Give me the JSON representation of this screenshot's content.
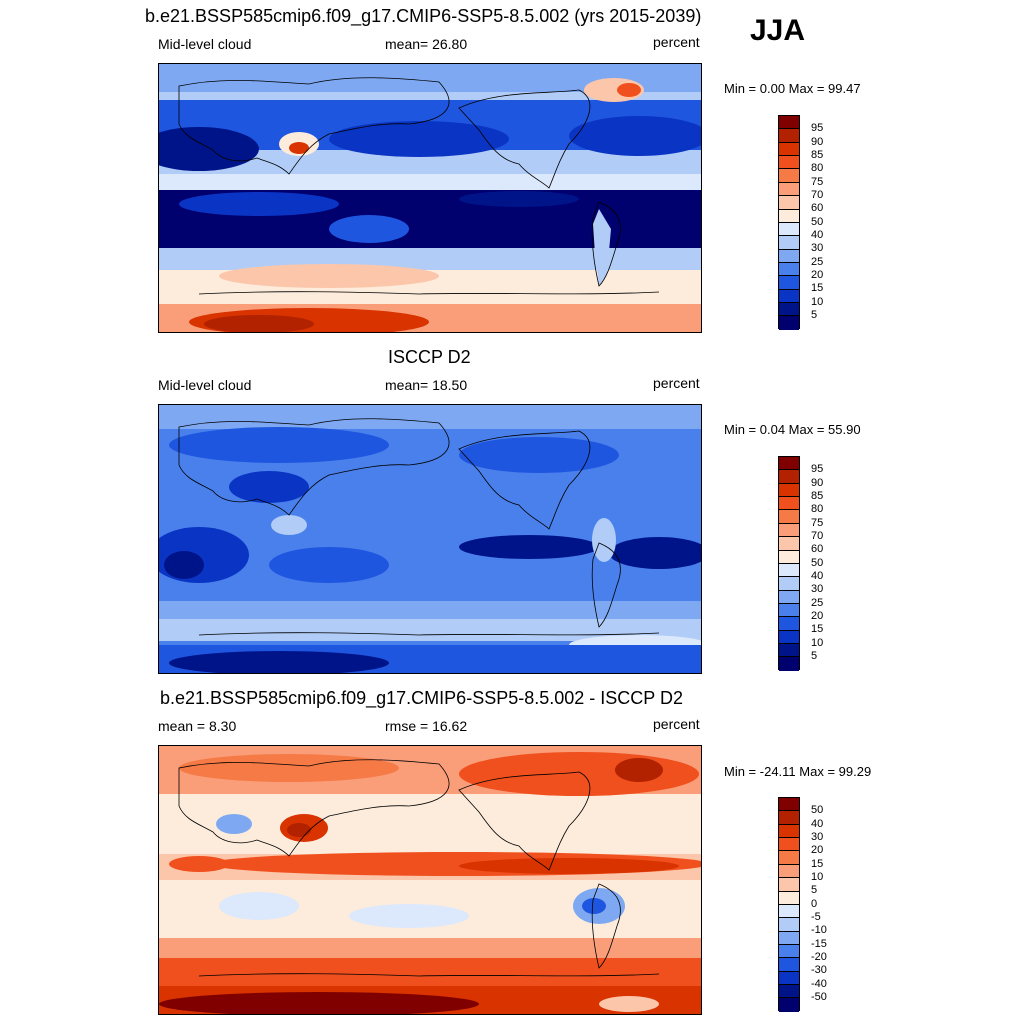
{
  "season": "JJA",
  "units": "percent",
  "panels": [
    {
      "title": "b.e21.BSSP585cmip6.f09_g17.CMIP6-SSP5-8.5.002 (yrs 2015-2039)",
      "left_label": "Mid-level cloud",
      "center_label": "mean=  26.80",
      "right_label": "percent",
      "range_text": "Min =    0.00 Max =  99.47",
      "colorbar": {
        "labels": [
          "95",
          "90",
          "85",
          "80",
          "75",
          "70",
          "60",
          "50",
          "40",
          "30",
          "25",
          "20",
          "15",
          "10",
          "5"
        ],
        "colors": [
          "#800000",
          "#b22200",
          "#d93300",
          "#f0501e",
          "#f57a46",
          "#fa9e7a",
          "#fcc6ab",
          "#fdecdc",
          "#dce8fb",
          "#b0ccf7",
          "#7ea9f2",
          "#4a80ec",
          "#1f56e0",
          "#0a34c4",
          "#00148a",
          "#00006e"
        ]
      }
    },
    {
      "title": "ISCCP D2",
      "left_label": "Mid-level cloud",
      "center_label": "mean=  18.50",
      "right_label": "percent",
      "range_text": "Min =    0.04 Max =  55.90",
      "colorbar": {
        "labels": [
          "95",
          "90",
          "85",
          "80",
          "75",
          "70",
          "60",
          "50",
          "40",
          "30",
          "25",
          "20",
          "15",
          "10",
          "5"
        ],
        "colors": [
          "#800000",
          "#b22200",
          "#d93300",
          "#f0501e",
          "#f57a46",
          "#fa9e7a",
          "#fcc6ab",
          "#fdecdc",
          "#dce8fb",
          "#b0ccf7",
          "#7ea9f2",
          "#4a80ec",
          "#1f56e0",
          "#0a34c4",
          "#00148a",
          "#00006e"
        ]
      }
    },
    {
      "title": "b.e21.BSSP585cmip6.f09_g17.CMIP6-SSP5-8.5.002 - ISCCP D2",
      "left_label": "mean =   8.30",
      "center_label": "rmse =  16.62",
      "right_label": "percent",
      "range_text": "Min = -24.11 Max =  99.29",
      "colorbar": {
        "labels": [
          "50",
          "40",
          "30",
          "20",
          "15",
          "10",
          "5",
          "0",
          "-5",
          "-10",
          "-15",
          "-20",
          "-30",
          "-40",
          "-50"
        ],
        "colors": [
          "#800000",
          "#b22200",
          "#d93300",
          "#f0501e",
          "#f57a46",
          "#fa9e7a",
          "#fcc6ab",
          "#fdecdc",
          "#dce8fb",
          "#b0ccf7",
          "#7ea9f2",
          "#4a80ec",
          "#1f56e0",
          "#0a34c4",
          "#00148a",
          "#00006e"
        ]
      }
    }
  ]
}
